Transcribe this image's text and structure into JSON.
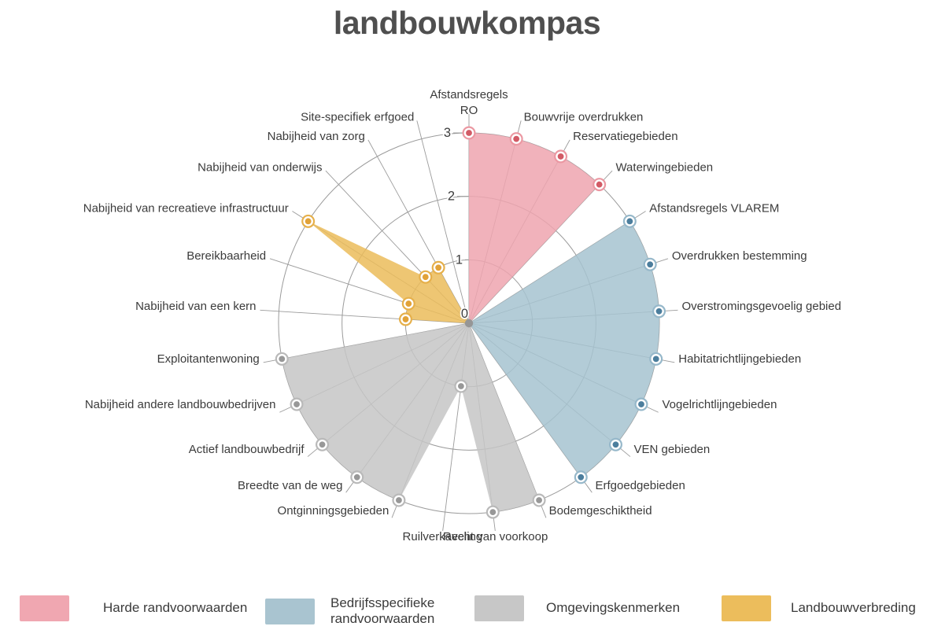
{
  "title": "landbouwkompas",
  "chart_data": {
    "type": "radar-polar-filled",
    "title": "landbouwkompas",
    "radial_axis": {
      "ticks": [
        0,
        1,
        2,
        3
      ],
      "min": 0,
      "max": 3
    },
    "grid": true,
    "legend_position": "bottom",
    "groups": [
      {
        "name": "Harde randvoorwaarden",
        "fill": "#efa5af",
        "dot": "#d25b66",
        "ring": "#eb98a2",
        "legend_color": "#f0a7b1"
      },
      {
        "name": "Bedrijfsspecifieke randvoorwaarden",
        "fill": "#a6c3d0",
        "dot": "#4c7e9d",
        "ring": "#96b8ca",
        "legend_color": "#a9c4d0"
      },
      {
        "name": "Omgevingskenmerken",
        "fill": "#c6c6c6",
        "dot": "#989898",
        "ring": "#b9b9b9",
        "legend_color": "#c7c7c7"
      },
      {
        "name": "Landbouwverbreding",
        "fill": "#ebbc5a",
        "dot": "#e1a238",
        "ring": "#e6b04b",
        "legend_color": "#ecbd5c"
      }
    ],
    "categories": [
      {
        "label": "Afstandsregels RO",
        "lines": [
          "Afstandsregels",
          "RO"
        ],
        "group": 0,
        "value": 3
      },
      {
        "label": "Bouwvrije overdrukken",
        "group": 0,
        "value": 3
      },
      {
        "label": "Reservatiegebieden",
        "group": 0,
        "value": 3
      },
      {
        "label": "Waterwingebieden",
        "group": 0,
        "value": 3
      },
      {
        "label": "Afstandsregels VLAREM",
        "group": 1,
        "value": 3
      },
      {
        "label": "Overdrukken bestemming",
        "group": 1,
        "value": 3
      },
      {
        "label": "Overstromingsgevoelig gebied",
        "group": 1,
        "value": 3
      },
      {
        "label": "Habitatrichtlijngebieden",
        "group": 1,
        "value": 3
      },
      {
        "label": "Vogelrichtlijngebieden",
        "group": 1,
        "value": 3
      },
      {
        "label": "VEN gebieden",
        "group": 1,
        "value": 3
      },
      {
        "label": "Erfgoedgebieden",
        "group": 1,
        "value": 3
      },
      {
        "label": "Bodemgeschiktheid",
        "group": 2,
        "value": 3
      },
      {
        "label": "Recht van voorkoop",
        "group": 2,
        "value": 3
      },
      {
        "label": "Ruilverkaveling",
        "group": 2,
        "value": 1
      },
      {
        "label": "Ontginningsgebieden",
        "group": 2,
        "value": 3
      },
      {
        "label": "Breedte van de weg",
        "group": 2,
        "value": 3
      },
      {
        "label": "Actief landbouwbedrijf",
        "group": 2,
        "value": 3
      },
      {
        "label": "Nabijheid andere landbouwbedrijven",
        "group": 2,
        "value": 3
      },
      {
        "label": "Exploitantenwoning",
        "group": 2,
        "value": 3
      },
      {
        "label": "Nabijheid van een kern",
        "group": 3,
        "value": 1
      },
      {
        "label": "Bereikbaarheid",
        "group": 3,
        "value": 1
      },
      {
        "label": "Nabijheid van recreatieve infrastructuur",
        "group": 3,
        "value": 3
      },
      {
        "label": "Nabijheid van onderwijs",
        "group": 3,
        "value": 1
      },
      {
        "label": "Nabijheid van zorg",
        "group": 3,
        "value": 1
      },
      {
        "label": "Site-specifiek erfgoed",
        "group": null,
        "value": null
      }
    ]
  }
}
